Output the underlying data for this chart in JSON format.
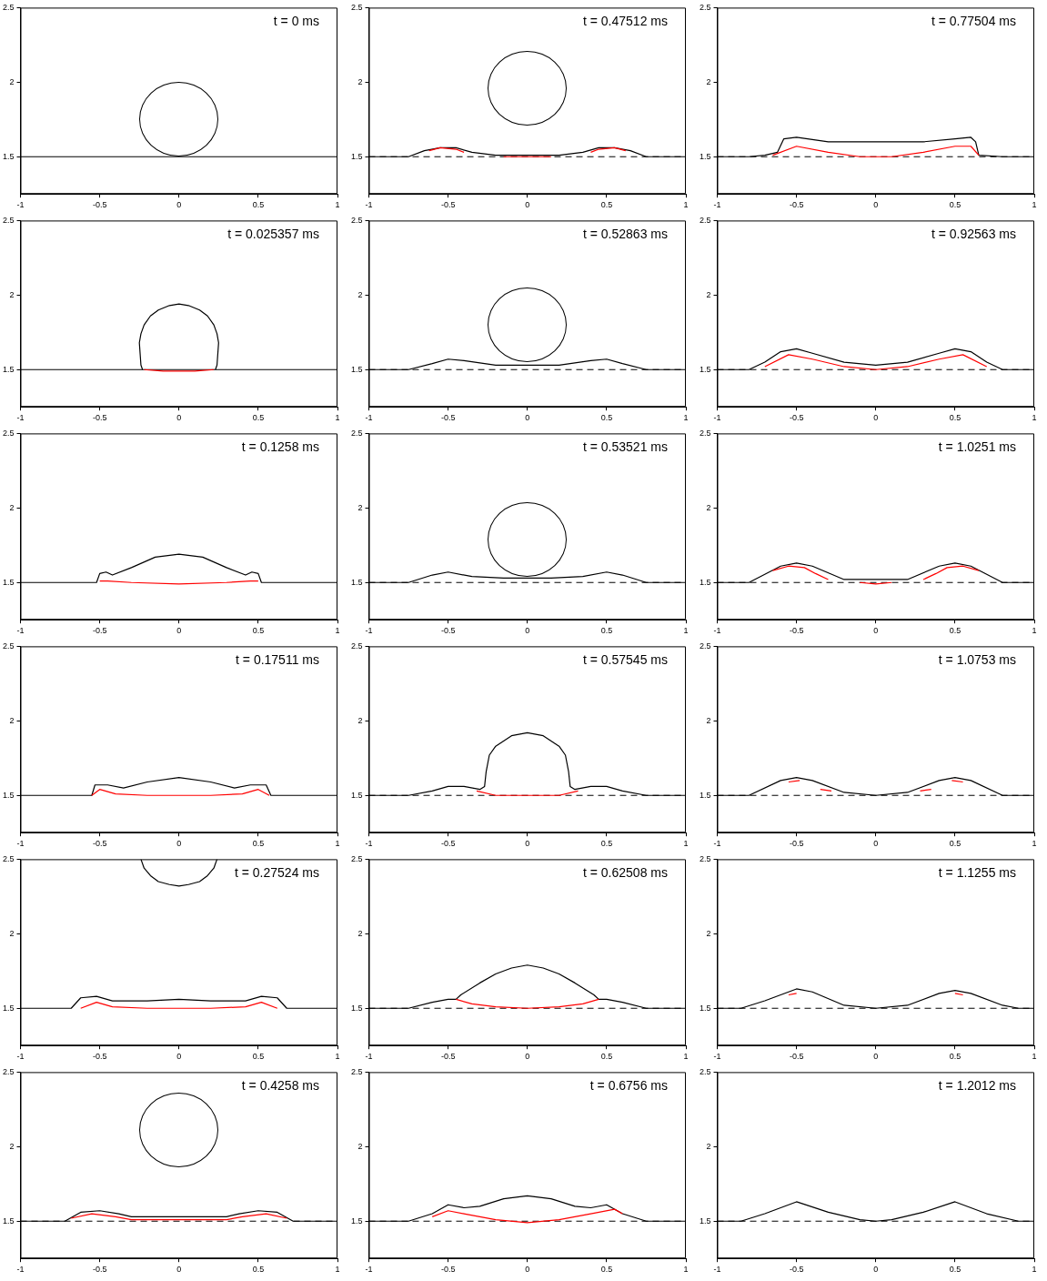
{
  "chart_data": [
    {
      "type": "line",
      "annotations": [
        "t = 0 ms"
      ],
      "xlim": [
        -1,
        1
      ],
      "ylim": [
        1.25,
        2.5
      ],
      "xticks": [
        -1,
        -0.5,
        0,
        0.5,
        1
      ],
      "yticks": [
        1.5,
        2,
        2.5
      ],
      "series": [
        {
          "color": "#000000",
          "x": [
            -1,
            1
          ],
          "values": [
            1.5,
            1.5
          ]
        }
      ]
    },
    {
      "type": "line",
      "annotations": [
        "t = 0.47512 ms"
      ],
      "xlim": [
        -1,
        1
      ],
      "ylim": [
        1.25,
        2.5
      ],
      "xticks": [
        -1,
        -0.5,
        0,
        0.5,
        1
      ],
      "yticks": [
        1.5,
        2,
        2.5
      ],
      "ref_lines": [
        {
          "axis": "y",
          "value": 1.5,
          "color": "#000000",
          "line_style": "dashed"
        }
      ],
      "series": [
        {
          "color": "#000000",
          "x": [
            -1,
            -0.75,
            -0.65,
            -0.55,
            -0.45,
            -0.35,
            -0.2,
            0,
            0.2,
            0.35,
            0.45,
            0.55,
            0.65,
            0.75,
            1
          ],
          "values": [
            1.5,
            1.5,
            1.54,
            1.56,
            1.56,
            1.53,
            1.51,
            1.51,
            1.51,
            1.53,
            1.56,
            1.56,
            1.54,
            1.5,
            1.5
          ]
        },
        {
          "color": "#ff0000",
          "x": [
            -0.62,
            -0.55,
            -0.45,
            -0.4,
            -0.3,
            -0.15,
            0,
            0.15,
            0.3,
            0.4,
            0.45,
            0.55,
            0.62
          ],
          "values": [
            1.54,
            1.56,
            1.55,
            1.53,
            null,
            1.5,
            1.5,
            1.5,
            null,
            1.53,
            1.55,
            1.56,
            1.54
          ]
        }
      ]
    },
    {
      "type": "line",
      "annotations": [
        "t = 0.77504 ms"
      ],
      "xlim": [
        -1,
        1
      ],
      "ylim": [
        1.25,
        2.5
      ],
      "xticks": [
        -1,
        -0.5,
        0,
        0.5,
        1
      ],
      "yticks": [
        1.5,
        2,
        2.5
      ],
      "ref_lines": [
        {
          "axis": "y",
          "value": 1.5,
          "color": "#000000",
          "line_style": "dashed"
        }
      ],
      "series": [
        {
          "color": "#000000",
          "x": [
            -1,
            -0.8,
            -0.7,
            -0.62,
            -0.58,
            -0.5,
            -0.3,
            0,
            0.3,
            0.5,
            0.6,
            0.63,
            0.65,
            0.8,
            1
          ],
          "values": [
            1.5,
            1.5,
            1.51,
            1.53,
            1.62,
            1.63,
            1.6,
            1.6,
            1.6,
            1.62,
            1.63,
            1.6,
            1.51,
            1.5,
            1.5
          ]
        },
        {
          "color": "#ff0000",
          "x": [
            -0.65,
            -0.5,
            -0.3,
            -0.1,
            0,
            0.1,
            0.3,
            0.5,
            0.6,
            0.65
          ],
          "values": [
            1.51,
            1.57,
            1.53,
            1.5,
            1.5,
            1.5,
            1.53,
            1.57,
            1.57,
            1.51
          ]
        }
      ]
    },
    {
      "type": "line",
      "annotations": [
        "t = 0.025357 ms"
      ],
      "xlim": [
        -1,
        1
      ],
      "ylim": [
        1.25,
        2.5
      ],
      "xticks": [
        -1,
        -0.5,
        0,
        0.5,
        1
      ],
      "yticks": [
        1.5,
        2,
        2.5
      ],
      "series": [
        {
          "color": "#000000",
          "x": [
            -1,
            1
          ],
          "values": [
            1.5,
            1.5
          ]
        },
        {
          "color": "#000000",
          "x": [
            -0.23,
            -0.24,
            -0.25,
            -0.24,
            -0.22,
            -0.18,
            -0.13,
            -0.06,
            0,
            0.06,
            0.13,
            0.18,
            0.22,
            0.24,
            0.25,
            0.24,
            0.23
          ],
          "values": [
            1.5,
            1.53,
            1.68,
            1.74,
            1.8,
            1.86,
            1.9,
            1.93,
            1.94,
            1.93,
            1.9,
            1.86,
            1.8,
            1.74,
            1.68,
            1.53,
            1.5
          ]
        },
        {
          "color": "#ff0000",
          "x": [
            -0.22,
            -0.1,
            0,
            0.1,
            0.22
          ],
          "values": [
            1.5,
            1.49,
            1.49,
            1.49,
            1.5
          ]
        }
      ]
    },
    {
      "type": "line",
      "annotations": [
        "t = 0.52863 ms"
      ],
      "xlim": [
        -1,
        1
      ],
      "ylim": [
        1.25,
        2.5
      ],
      "xticks": [
        -1,
        -0.5,
        0,
        0.5,
        1
      ],
      "yticks": [
        1.5,
        2,
        2.5
      ],
      "ref_lines": [
        {
          "axis": "y",
          "value": 1.5,
          "color": "#000000",
          "line_style": "dashed"
        }
      ],
      "series": [
        {
          "color": "#000000",
          "x": [
            -1,
            -0.75,
            -0.6,
            -0.5,
            -0.4,
            -0.2,
            0,
            0.2,
            0.4,
            0.5,
            0.6,
            0.75,
            1
          ],
          "values": [
            1.5,
            1.5,
            1.54,
            1.57,
            1.56,
            1.53,
            1.53,
            1.53,
            1.56,
            1.57,
            1.54,
            1.5,
            1.5
          ]
        }
      ]
    },
    {
      "type": "line",
      "annotations": [
        "t = 0.92563 ms"
      ],
      "xlim": [
        -1,
        1
      ],
      "ylim": [
        1.25,
        2.5
      ],
      "xticks": [
        -1,
        -0.5,
        0,
        0.5,
        1
      ],
      "yticks": [
        1.5,
        2,
        2.5
      ],
      "ref_lines": [
        {
          "axis": "y",
          "value": 1.5,
          "color": "#000000",
          "line_style": "dashed"
        }
      ],
      "series": [
        {
          "color": "#000000",
          "x": [
            -1,
            -0.8,
            -0.7,
            -0.6,
            -0.5,
            -0.4,
            -0.2,
            0,
            0.2,
            0.4,
            0.5,
            0.6,
            0.7,
            0.8,
            1
          ],
          "values": [
            1.5,
            1.5,
            1.55,
            1.62,
            1.64,
            1.61,
            1.55,
            1.53,
            1.55,
            1.61,
            1.64,
            1.62,
            1.55,
            1.5,
            1.5
          ]
        },
        {
          "color": "#ff0000",
          "x": [
            -0.7,
            -0.55,
            -0.4,
            -0.2,
            0,
            0.2,
            0.4,
            0.55,
            0.7
          ],
          "values": [
            1.52,
            1.6,
            1.57,
            1.52,
            1.5,
            1.52,
            1.57,
            1.6,
            1.52
          ]
        }
      ]
    },
    {
      "type": "line",
      "annotations": [
        "t = 0.1258 ms"
      ],
      "xlim": [
        -1,
        1
      ],
      "ylim": [
        1.25,
        2.5
      ],
      "xticks": [
        -1,
        -0.5,
        0,
        0.5,
        1
      ],
      "yticks": [
        1.5,
        2,
        2.5
      ],
      "series": [
        {
          "color": "#000000",
          "x": [
            -1,
            -0.52,
            -0.5,
            -0.46,
            -0.42,
            -0.3,
            -0.15,
            0,
            0.15,
            0.3,
            0.42,
            0.46,
            0.5,
            0.52,
            1
          ],
          "values": [
            1.5,
            1.5,
            1.56,
            1.57,
            1.55,
            1.6,
            1.67,
            1.69,
            1.67,
            1.6,
            1.55,
            1.57,
            1.56,
            1.5,
            1.5
          ]
        },
        {
          "color": "#ff0000",
          "x": [
            -0.5,
            -0.45,
            -0.3,
            0,
            0.3,
            0.45,
            0.5
          ],
          "values": [
            1.51,
            1.51,
            1.5,
            1.49,
            1.5,
            1.51,
            1.51
          ]
        }
      ]
    },
    {
      "type": "line",
      "annotations": [
        "t = 0.53521 ms"
      ],
      "xlim": [
        -1,
        1
      ],
      "ylim": [
        1.25,
        2.5
      ],
      "xticks": [
        -1,
        -0.5,
        0,
        0.5,
        1
      ],
      "yticks": [
        1.5,
        2,
        2.5
      ],
      "ref_lines": [
        {
          "axis": "y",
          "value": 1.5,
          "color": "#000000",
          "line_style": "dashed"
        }
      ],
      "series": [
        {
          "color": "#000000",
          "x": [
            -1,
            -0.75,
            -0.6,
            -0.5,
            -0.35,
            -0.15,
            0,
            0.15,
            0.35,
            0.5,
            0.6,
            0.75,
            1
          ],
          "values": [
            1.5,
            1.5,
            1.55,
            1.57,
            1.54,
            1.53,
            1.53,
            1.53,
            1.54,
            1.57,
            1.55,
            1.5,
            1.5
          ]
        }
      ]
    },
    {
      "type": "line",
      "annotations": [
        "t = 1.0251 ms"
      ],
      "xlim": [
        -1,
        1
      ],
      "ylim": [
        1.25,
        2.5
      ],
      "xticks": [
        -1,
        -0.5,
        0,
        0.5,
        1
      ],
      "yticks": [
        1.5,
        2,
        2.5
      ],
      "ref_lines": [
        {
          "axis": "y",
          "value": 1.5,
          "color": "#000000",
          "line_style": "dashed"
        }
      ],
      "series": [
        {
          "color": "#000000",
          "x": [
            -1,
            -0.8,
            -0.6,
            -0.5,
            -0.4,
            -0.2,
            0,
            0.2,
            0.4,
            0.5,
            0.6,
            0.8,
            1
          ],
          "values": [
            1.5,
            1.5,
            1.61,
            1.63,
            1.61,
            1.52,
            1.52,
            1.52,
            1.61,
            1.63,
            1.61,
            1.5,
            1.5
          ]
        },
        {
          "color": "#ff0000",
          "x": [
            -0.65,
            -0.55,
            -0.45,
            -0.38,
            -0.3,
            -0.2,
            -0.1,
            0,
            0.1,
            0.2,
            0.3,
            0.38,
            0.45,
            0.55,
            0.65
          ],
          "values": [
            1.58,
            1.61,
            1.6,
            1.56,
            1.52,
            null,
            1.5,
            1.49,
            1.5,
            null,
            1.52,
            1.56,
            1.6,
            1.61,
            1.58
          ]
        }
      ]
    },
    {
      "type": "line",
      "annotations": [
        "t = 0.17511 ms"
      ],
      "xlim": [
        -1,
        1
      ],
      "ylim": [
        1.25,
        2.5
      ],
      "xticks": [
        -1,
        -0.5,
        0,
        0.5,
        1
      ],
      "yticks": [
        1.5,
        2,
        2.5
      ],
      "series": [
        {
          "color": "#000000",
          "x": [
            -1,
            -0.55,
            -0.53,
            -0.45,
            -0.35,
            -0.2,
            0,
            0.2,
            0.35,
            0.45,
            0.55,
            0.58,
            1
          ],
          "values": [
            1.5,
            1.5,
            1.57,
            1.57,
            1.55,
            1.59,
            1.62,
            1.59,
            1.55,
            1.57,
            1.57,
            1.5,
            1.5
          ]
        },
        {
          "color": "#ff0000",
          "x": [
            -0.55,
            -0.5,
            -0.4,
            -0.2,
            0,
            0.2,
            0.4,
            0.5,
            0.57
          ],
          "values": [
            1.5,
            1.54,
            1.51,
            1.5,
            1.5,
            1.5,
            1.51,
            1.54,
            1.5
          ]
        }
      ]
    },
    {
      "type": "line",
      "annotations": [
        "t = 0.57545 ms"
      ],
      "xlim": [
        -1,
        1
      ],
      "ylim": [
        1.25,
        2.5
      ],
      "xticks": [
        -1,
        -0.5,
        0,
        0.5,
        1
      ],
      "yticks": [
        1.5,
        2,
        2.5
      ],
      "ref_lines": [
        {
          "axis": "y",
          "value": 1.5,
          "color": "#000000",
          "line_style": "dashed"
        }
      ],
      "series": [
        {
          "color": "#000000",
          "x": [
            -1,
            -0.75,
            -0.6,
            -0.5,
            -0.4,
            -0.3,
            -0.27,
            -0.26,
            -0.24,
            -0.2,
            -0.1,
            0,
            0.1,
            0.2,
            0.24,
            0.26,
            0.27,
            0.3,
            0.4,
            0.5,
            0.6,
            0.75,
            1
          ],
          "values": [
            1.5,
            1.5,
            1.53,
            1.56,
            1.56,
            1.54,
            1.56,
            1.66,
            1.77,
            1.83,
            1.9,
            1.92,
            1.9,
            1.83,
            1.77,
            1.66,
            1.56,
            1.54,
            1.56,
            1.56,
            1.53,
            1.5,
            1.5
          ]
        },
        {
          "color": "#ff0000",
          "x": [
            -0.32,
            -0.2,
            0,
            0.2,
            0.32
          ],
          "values": [
            1.53,
            1.5,
            1.5,
            1.5,
            1.53
          ]
        }
      ]
    },
    {
      "type": "line",
      "annotations": [
        "t = 1.0753 ms"
      ],
      "xlim": [
        -1,
        1
      ],
      "ylim": [
        1.25,
        2.5
      ],
      "xticks": [
        -1,
        -0.5,
        0,
        0.5,
        1
      ],
      "yticks": [
        1.5,
        2,
        2.5
      ],
      "ref_lines": [
        {
          "axis": "y",
          "value": 1.5,
          "color": "#000000",
          "line_style": "dashed"
        }
      ],
      "series": [
        {
          "color": "#000000",
          "x": [
            -1,
            -0.8,
            -0.6,
            -0.5,
            -0.4,
            -0.2,
            0,
            0.2,
            0.4,
            0.5,
            0.6,
            0.8,
            1
          ],
          "values": [
            1.5,
            1.5,
            1.6,
            1.62,
            1.6,
            1.52,
            1.5,
            1.52,
            1.6,
            1.62,
            1.6,
            1.5,
            1.5
          ]
        },
        {
          "color": "#ff0000",
          "x": [
            -0.55,
            -0.48,
            -0.4,
            -0.35,
            -0.28,
            0,
            0.28,
            0.35,
            0.4,
            0.48,
            0.55
          ],
          "values": [
            1.59,
            1.6,
            null,
            1.54,
            1.53,
            null,
            1.53,
            1.54,
            null,
            1.6,
            1.59
          ]
        }
      ]
    },
    {
      "type": "line",
      "annotations": [
        "t = 0.27524 ms"
      ],
      "xlim": [
        -1,
        1
      ],
      "ylim": [
        1.25,
        2.5
      ],
      "xticks": [
        -1,
        -0.5,
        0,
        0.5,
        1
      ],
      "yticks": [
        1.5,
        2,
        2.5
      ],
      "series": [
        {
          "color": "#000000",
          "x": [
            -1,
            -0.68,
            -0.62,
            -0.52,
            -0.42,
            -0.2,
            0,
            0.2,
            0.42,
            0.52,
            0.62,
            0.68,
            1
          ],
          "values": [
            1.5,
            1.5,
            1.57,
            1.58,
            1.55,
            1.55,
            1.56,
            1.55,
            1.55,
            1.58,
            1.57,
            1.5,
            1.5
          ]
        },
        {
          "color": "#ff0000",
          "x": [
            -0.62,
            -0.52,
            -0.42,
            -0.2,
            0,
            0.2,
            0.42,
            0.52,
            0.62
          ],
          "values": [
            1.5,
            1.54,
            1.51,
            1.5,
            1.5,
            1.5,
            1.51,
            1.54,
            1.5
          ]
        },
        {
          "color": "#000000",
          "x": [
            -0.24,
            -0.22,
            -0.18,
            -0.13,
            -0.06,
            0,
            0.06,
            0.13,
            0.18,
            0.22,
            0.24
          ],
          "values": [
            2.5,
            2.44,
            2.39,
            2.35,
            2.33,
            2.32,
            2.33,
            2.35,
            2.39,
            2.44,
            2.5
          ]
        }
      ]
    },
    {
      "type": "line",
      "annotations": [
        "t = 0.62508 ms"
      ],
      "xlim": [
        -1,
        1
      ],
      "ylim": [
        1.25,
        2.5
      ],
      "xticks": [
        -1,
        -0.5,
        0,
        0.5,
        1
      ],
      "yticks": [
        1.5,
        2,
        2.5
      ],
      "ref_lines": [
        {
          "axis": "y",
          "value": 1.5,
          "color": "#000000",
          "line_style": "dashed"
        }
      ],
      "series": [
        {
          "color": "#000000",
          "x": [
            -1,
            -0.75,
            -0.6,
            -0.5,
            -0.45,
            -0.42,
            -0.3,
            -0.2,
            -0.1,
            0,
            0.1,
            0.2,
            0.3,
            0.42,
            0.45,
            0.5,
            0.6,
            0.75,
            1
          ],
          "values": [
            1.5,
            1.5,
            1.54,
            1.56,
            1.56,
            1.59,
            1.67,
            1.73,
            1.77,
            1.79,
            1.77,
            1.73,
            1.67,
            1.59,
            1.56,
            1.56,
            1.54,
            1.5,
            1.5
          ]
        },
        {
          "color": "#ff0000",
          "x": [
            -0.45,
            -0.35,
            -0.2,
            0,
            0.2,
            0.35,
            0.45
          ],
          "values": [
            1.56,
            1.53,
            1.51,
            1.5,
            1.51,
            1.53,
            1.56
          ]
        }
      ]
    },
    {
      "type": "line",
      "annotations": [
        "t = 1.1255 ms"
      ],
      "xlim": [
        -1,
        1
      ],
      "ylim": [
        1.25,
        2.5
      ],
      "xticks": [
        -1,
        -0.5,
        0,
        0.5,
        1
      ],
      "yticks": [
        1.5,
        2,
        2.5
      ],
      "ref_lines": [
        {
          "axis": "y",
          "value": 1.5,
          "color": "#000000",
          "line_style": "dashed"
        }
      ],
      "series": [
        {
          "color": "#000000",
          "x": [
            -1,
            -0.85,
            -0.7,
            -0.5,
            -0.4,
            -0.2,
            0,
            0.2,
            0.4,
            0.5,
            0.6,
            0.8,
            0.9,
            1
          ],
          "values": [
            1.5,
            1.5,
            1.55,
            1.63,
            1.61,
            1.52,
            1.5,
            1.52,
            1.6,
            1.62,
            1.6,
            1.52,
            1.5,
            1.5
          ]
        },
        {
          "color": "#ff0000",
          "x": [
            -0.55,
            -0.5,
            0,
            0.5,
            0.55
          ],
          "values": [
            1.59,
            1.6,
            null,
            1.6,
            1.59
          ]
        }
      ]
    },
    {
      "type": "line",
      "annotations": [
        "t = 0.4258 ms"
      ],
      "xlim": [
        -1,
        1
      ],
      "ylim": [
        1.25,
        2.5
      ],
      "xticks": [
        -1,
        -0.5,
        0,
        0.5,
        1
      ],
      "yticks": [
        1.5,
        2,
        2.5
      ],
      "ref_lines": [
        {
          "axis": "y",
          "value": 1.5,
          "color": "#000000",
          "line_style": "dashed"
        }
      ],
      "series": [
        {
          "color": "#000000",
          "x": [
            -1,
            -0.72,
            -0.62,
            -0.5,
            -0.38,
            -0.3,
            0,
            0.3,
            0.38,
            0.5,
            0.62,
            0.72,
            1
          ],
          "values": [
            1.5,
            1.5,
            1.56,
            1.57,
            1.55,
            1.53,
            1.53,
            1.53,
            1.55,
            1.57,
            1.56,
            1.5,
            1.5
          ]
        },
        {
          "color": "#ff0000",
          "x": [
            -0.68,
            -0.55,
            -0.4,
            -0.3,
            0,
            0.3,
            0.4,
            0.55,
            0.68
          ],
          "values": [
            1.52,
            1.55,
            1.53,
            1.51,
            1.51,
            1.51,
            1.53,
            1.55,
            1.52
          ]
        }
      ]
    },
    {
      "type": "line",
      "annotations": [
        "t = 0.6756 ms"
      ],
      "xlim": [
        -1,
        1
      ],
      "ylim": [
        1.25,
        2.5
      ],
      "xticks": [
        -1,
        -0.5,
        0,
        0.5,
        1
      ],
      "yticks": [
        1.5,
        2,
        2.5
      ],
      "ref_lines": [
        {
          "axis": "y",
          "value": 1.5,
          "color": "#000000",
          "line_style": "dashed"
        }
      ],
      "series": [
        {
          "color": "#000000",
          "x": [
            -1,
            -0.75,
            -0.6,
            -0.5,
            -0.4,
            -0.3,
            -0.15,
            0,
            0.15,
            0.3,
            0.4,
            0.5,
            0.6,
            0.75,
            1
          ],
          "values": [
            1.5,
            1.5,
            1.55,
            1.61,
            1.59,
            1.6,
            1.65,
            1.67,
            1.65,
            1.6,
            1.59,
            1.61,
            1.55,
            1.5,
            1.5
          ]
        },
        {
          "color": "#ff0000",
          "x": [
            -0.6,
            -0.5,
            -0.4,
            -0.2,
            0,
            0.2,
            0.4,
            0.55,
            0.6
          ],
          "values": [
            1.53,
            1.57,
            1.55,
            1.51,
            1.49,
            1.51,
            1.55,
            1.58,
            1.55
          ]
        }
      ]
    },
    {
      "type": "line",
      "annotations": [
        "t = 1.2012 ms"
      ],
      "xlim": [
        -1,
        1
      ],
      "ylim": [
        1.25,
        2.5
      ],
      "xticks": [
        -1,
        -0.5,
        0,
        0.5,
        1
      ],
      "yticks": [
        1.5,
        2,
        2.5
      ],
      "ref_lines": [
        {
          "axis": "y",
          "value": 1.5,
          "color": "#000000",
          "line_style": "dashed"
        }
      ],
      "series": [
        {
          "color": "#000000",
          "x": [
            -1,
            -0.85,
            -0.7,
            -0.5,
            -0.3,
            -0.1,
            0,
            0.1,
            0.3,
            0.5,
            0.7,
            0.9,
            1
          ],
          "values": [
            1.5,
            1.5,
            1.55,
            1.63,
            1.56,
            1.51,
            1.5,
            1.51,
            1.56,
            1.63,
            1.55,
            1.5,
            1.5
          ]
        }
      ]
    }
  ]
}
